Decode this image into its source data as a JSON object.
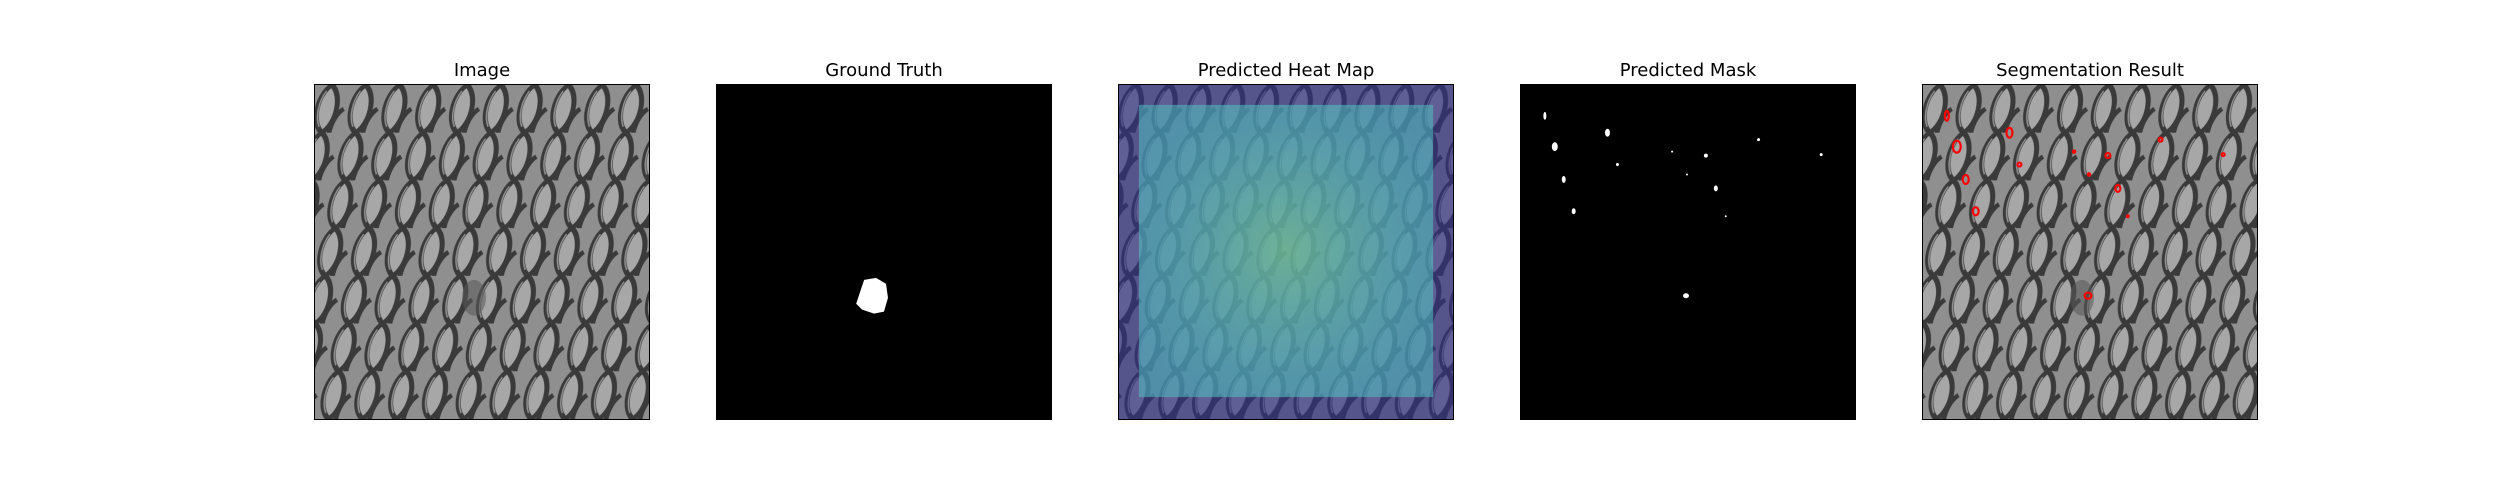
{
  "figure": {
    "panels": [
      {
        "title": "Image"
      },
      {
        "title": "Ground Truth"
      },
      {
        "title": "Predicted Heat Map"
      },
      {
        "title": "Predicted Mask"
      },
      {
        "title": "Segmentation Result"
      }
    ]
  },
  "colors": {
    "mesh_base": "#8f8f8f",
    "mesh_shadow": "#3a3a3a",
    "mesh_highlight": "#bdbdbd",
    "mask_fg": "#ffffff",
    "mask_bg": "#000000",
    "heat_outer": "#3b3f9a",
    "heat_inner": "#5fc7c4",
    "heat_hot": "#b7d96a",
    "contour": "#ff0000"
  }
}
